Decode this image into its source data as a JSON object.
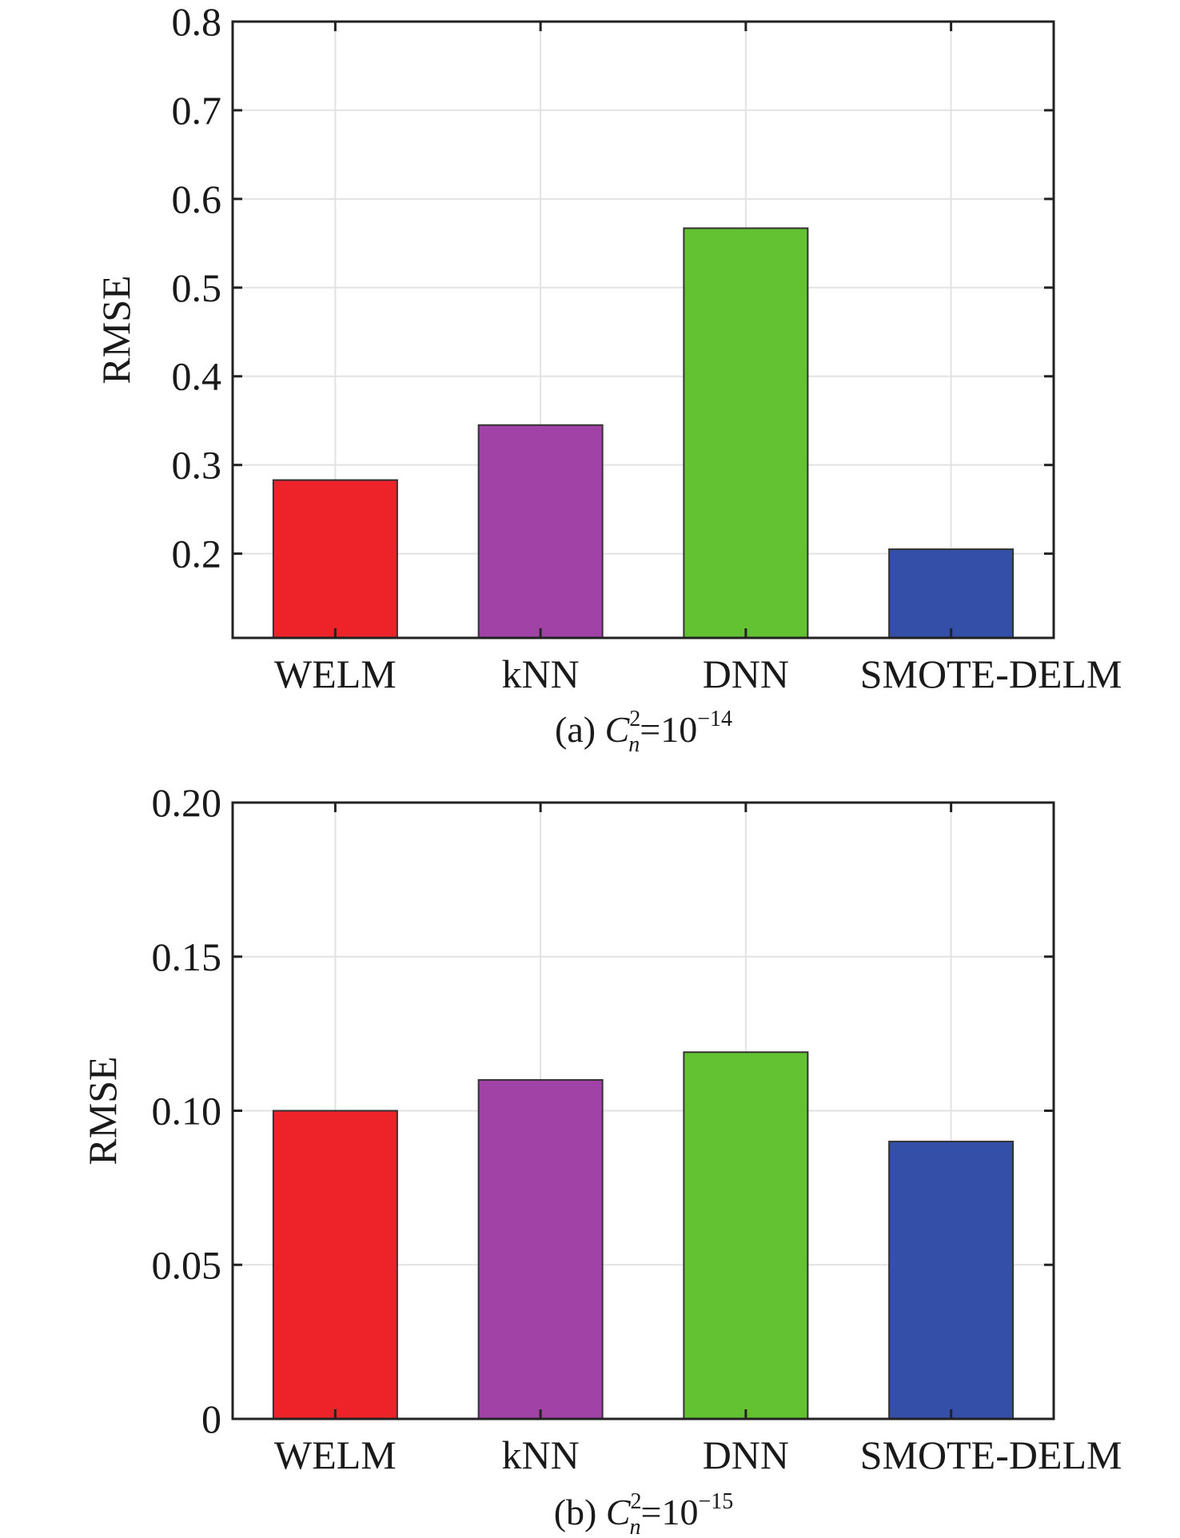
{
  "chart_data": [
    {
      "type": "bar",
      "categories": [
        "WELM",
        "kNN",
        "DNN",
        "SMOTE-DELM"
      ],
      "values": [
        0.283,
        0.345,
        0.567,
        0.205
      ],
      "ylabel": "RMSE",
      "xlabel": "",
      "ylim": [
        0.105,
        0.8
      ],
      "yticks": [
        0.2,
        0.3,
        0.4,
        0.5,
        0.6,
        0.7,
        0.8
      ],
      "ytick_labels": [
        "0.2",
        "0.3",
        "0.4",
        "0.5",
        "0.6",
        "0.7",
        "0.8"
      ],
      "grid": true,
      "bar_colors": [
        "#ee2229",
        "#a042a6",
        "#62c232",
        "#334fa8"
      ],
      "caption": {
        "prefix": "(a) ",
        "var": "C",
        "sup": "2",
        "sub": "n",
        "mid": "=10",
        "exp": "−14"
      }
    },
    {
      "type": "bar",
      "categories": [
        "WELM",
        "kNN",
        "DNN",
        "SMOTE-DELM"
      ],
      "values": [
        0.1,
        0.11,
        0.119,
        0.09
      ],
      "ylabel": "RMSE",
      "xlabel": "",
      "ylim": [
        0,
        0.2
      ],
      "yticks": [
        0,
        0.05,
        0.1,
        0.15,
        0.2
      ],
      "ytick_labels": [
        "0",
        "0.05",
        "0.10",
        "0.15",
        "0.20"
      ],
      "grid": true,
      "bar_colors": [
        "#ee2229",
        "#a042a6",
        "#62c232",
        "#334fa8"
      ],
      "caption": {
        "prefix": "(b) ",
        "var": "C",
        "sup": "2",
        "sub": "n",
        "mid": "=10",
        "exp": "−15"
      }
    }
  ]
}
